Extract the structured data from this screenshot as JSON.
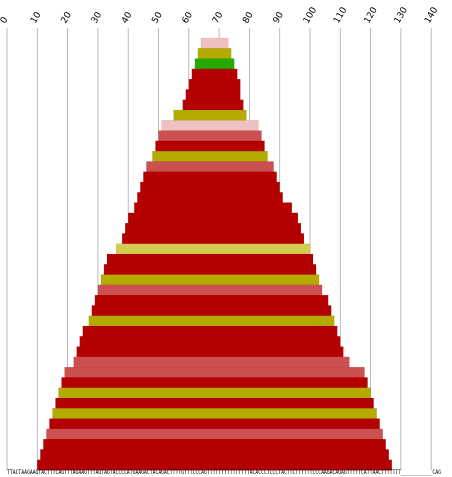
{
  "chart_data": {
    "type": "bar",
    "orientation": "horizontal",
    "title": "",
    "xlabel": "",
    "ylabel": "",
    "xlim": [
      0,
      140
    ],
    "x_ticks": [
      0,
      10,
      20,
      30,
      40,
      50,
      60,
      70,
      80,
      90,
      100,
      110,
      120,
      130,
      140
    ],
    "grid": true,
    "sequence_label": "TTACTAAGAAGTACTTTCAGTTTAGAAGTTTAGTAGTACCCCATGAAGACTACAGACTTTTGTTTCCCAGTTTTTTTTTTTTTTTACACCCTCCCTACTTCTTTTTTCCCAAGACAGAGTTTTTCATTAACTTTTTTT___________CAG",
    "colors": {
      "dark_red": "#b40000",
      "light_red": "#cd5050",
      "pink": "#f0c0c0",
      "olive": "#b4aa00",
      "light_olive": "#d2cc50",
      "green": "#22aa00"
    },
    "bars": [
      {
        "start": 64,
        "end": 73,
        "color": "pink"
      },
      {
        "start": 63,
        "end": 74,
        "color": "olive"
      },
      {
        "start": 62,
        "end": 75,
        "color": "green"
      },
      {
        "start": 61,
        "end": 76,
        "color": "dark_red"
      },
      {
        "start": 60,
        "end": 77,
        "color": "dark_red"
      },
      {
        "start": 59,
        "end": 77,
        "color": "dark_red"
      },
      {
        "start": 58,
        "end": 78,
        "color": "dark_red"
      },
      {
        "start": 55,
        "end": 79,
        "color": "olive"
      },
      {
        "start": 51,
        "end": 83,
        "color": "pink"
      },
      {
        "start": 50,
        "end": 84,
        "color": "light_red"
      },
      {
        "start": 49,
        "end": 85,
        "color": "dark_red"
      },
      {
        "start": 48,
        "end": 86,
        "color": "olive"
      },
      {
        "start": 46,
        "end": 88,
        "color": "light_red"
      },
      {
        "start": 45,
        "end": 89,
        "color": "dark_red"
      },
      {
        "start": 44,
        "end": 90,
        "color": "dark_red"
      },
      {
        "start": 43,
        "end": 91,
        "color": "dark_red"
      },
      {
        "start": 42,
        "end": 94,
        "color": "dark_red"
      },
      {
        "start": 40,
        "end": 96,
        "color": "dark_red"
      },
      {
        "start": 39,
        "end": 97,
        "color": "dark_red"
      },
      {
        "start": 38,
        "end": 98,
        "color": "dark_red"
      },
      {
        "start": 36,
        "end": 100,
        "color": "light_olive"
      },
      {
        "start": 33,
        "end": 101,
        "color": "dark_red"
      },
      {
        "start": 32,
        "end": 102,
        "color": "dark_red"
      },
      {
        "start": 31,
        "end": 103,
        "color": "olive"
      },
      {
        "start": 30,
        "end": 104,
        "color": "light_red"
      },
      {
        "start": 29,
        "end": 106,
        "color": "dark_red"
      },
      {
        "start": 28,
        "end": 107,
        "color": "dark_red"
      },
      {
        "start": 27,
        "end": 108,
        "color": "olive"
      },
      {
        "start": 25,
        "end": 109,
        "color": "dark_red"
      },
      {
        "start": 24,
        "end": 110,
        "color": "dark_red"
      },
      {
        "start": 23,
        "end": 111,
        "color": "dark_red"
      },
      {
        "start": 22,
        "end": 113,
        "color": "light_red"
      },
      {
        "start": 19,
        "end": 118,
        "color": "light_red"
      },
      {
        "start": 18,
        "end": 119,
        "color": "dark_red"
      },
      {
        "start": 17,
        "end": 120,
        "color": "olive"
      },
      {
        "start": 16,
        "end": 121,
        "color": "dark_red"
      },
      {
        "start": 15,
        "end": 122,
        "color": "olive"
      },
      {
        "start": 14,
        "end": 123,
        "color": "dark_red"
      },
      {
        "start": 13,
        "end": 124,
        "color": "light_red"
      },
      {
        "start": 12,
        "end": 125,
        "color": "dark_red"
      },
      {
        "start": 11,
        "end": 126,
        "color": "dark_red"
      },
      {
        "start": 10,
        "end": 127,
        "color": "dark_red"
      }
    ]
  }
}
